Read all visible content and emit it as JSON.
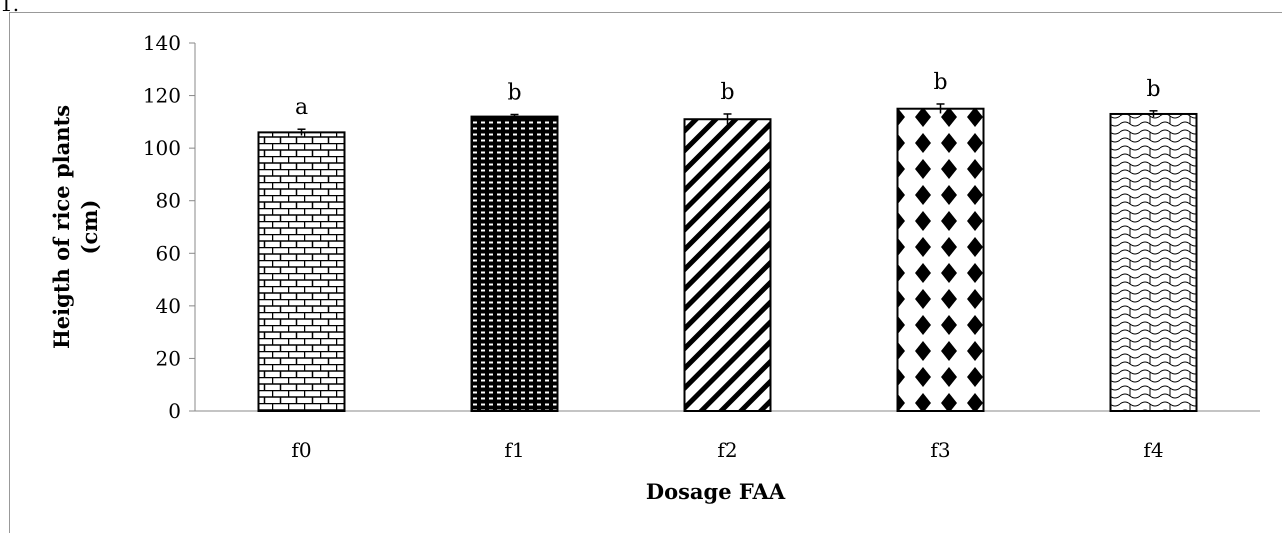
{
  "corner_label": "1.",
  "chart_data": {
    "type": "bar",
    "title": "",
    "xlabel": "Dosage FAA",
    "ylabel": "Heigth of rice plants (cm)",
    "ylabel_lines": [
      "Heigth of rice plants",
      "(cm)"
    ],
    "categories": [
      "f0",
      "f1",
      "f2",
      "f3",
      "f4"
    ],
    "values": [
      106,
      112,
      111,
      115,
      113
    ],
    "errors": [
      1.2,
      0.8,
      2.0,
      1.8,
      1.2
    ],
    "significance_letters": [
      "a",
      "b",
      "b",
      "b",
      "b"
    ],
    "patterns": [
      "brick",
      "dots",
      "diagonal",
      "diamond",
      "wave"
    ],
    "ylim": [
      0,
      140
    ],
    "yticks": [
      0,
      20,
      40,
      60,
      80,
      100,
      120,
      140
    ],
    "grid": false,
    "legend": "none"
  }
}
